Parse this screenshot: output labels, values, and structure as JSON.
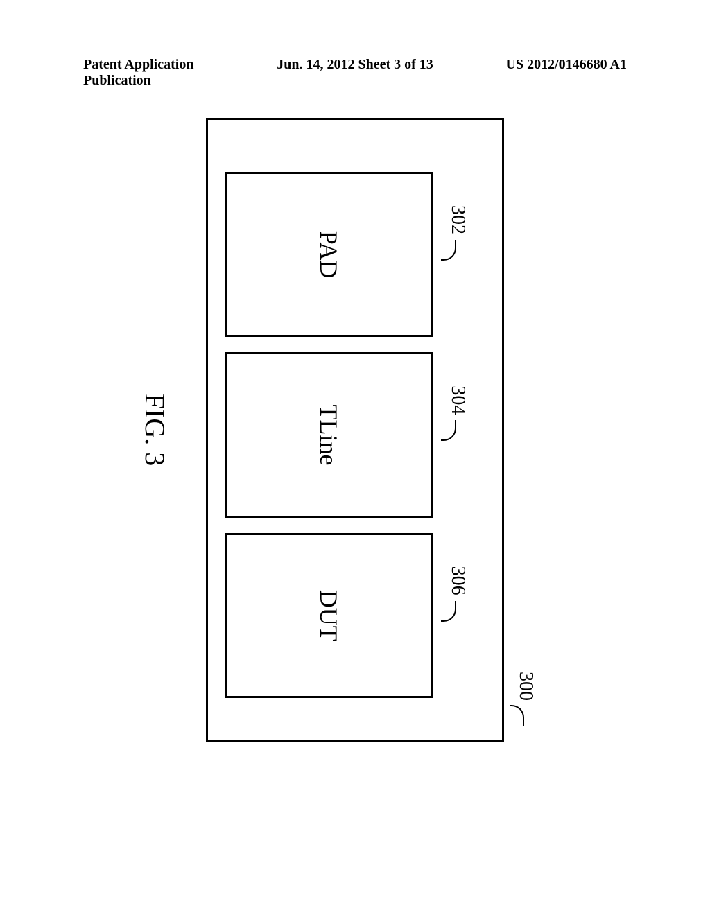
{
  "header": {
    "left": "Patent Application Publication",
    "center": "Jun. 14, 2012  Sheet 3 of 13",
    "right": "US 2012/0146680 A1"
  },
  "diagram": {
    "main_ref": "300",
    "blocks": [
      {
        "ref": "302",
        "label": "PAD"
      },
      {
        "ref": "304",
        "label": "TLine"
      },
      {
        "ref": "306",
        "label": "DUT"
      }
    ],
    "fig_label": "FIG. 3"
  }
}
